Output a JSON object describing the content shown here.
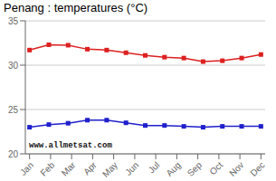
{
  "chart_data": {
    "type": "line",
    "title": "Penang : temperatures (°C)",
    "x": [
      0,
      0.9166666666666666,
      1.8333333333333333,
      2.75,
      3.6666666666666665,
      4.583333333333333,
      5.5,
      6.416666666666667,
      7.333333333333333,
      8.25,
      9.166666666666666,
      10.083333333333334,
      11
    ],
    "series": [
      {
        "color": "#dd2020",
        "marker": "square",
        "values": [
          31.7,
          32.3,
          32.25,
          31.8,
          31.7,
          31.4,
          31.1,
          30.9,
          30.8,
          30.4,
          30.5,
          30.8,
          31.2
        ]
      },
      {
        "color": "#2020cc",
        "marker": "square",
        "values": [
          23.0,
          23.3,
          23.45,
          23.8,
          23.8,
          23.5,
          23.2,
          23.2,
          23.1,
          23.0,
          23.1,
          23.1,
          23.1
        ]
      }
    ],
    "xlim": [
      -0.2,
      11.2
    ],
    "xticks": [
      {
        "value": 0,
        "label": "Jan"
      },
      {
        "value": 1,
        "label": "Feb"
      },
      {
        "value": 2,
        "label": "Mar"
      },
      {
        "value": 3,
        "label": "Apr"
      },
      {
        "value": 4,
        "label": "May"
      },
      {
        "value": 5,
        "label": "Jun"
      },
      {
        "value": 6,
        "label": "Jul"
      },
      {
        "value": 7,
        "label": "Aug"
      },
      {
        "value": 8,
        "label": "Sep"
      },
      {
        "value": 9,
        "label": "Oct"
      },
      {
        "value": 10,
        "label": "Nov"
      },
      {
        "value": 11,
        "label": "Dec"
      }
    ],
    "ylim": [
      20,
      35
    ],
    "yticks": [
      20,
      25,
      30,
      35
    ],
    "grid": true,
    "annotations": [
      {
        "text": "www.allmetsat.com"
      }
    ]
  }
}
